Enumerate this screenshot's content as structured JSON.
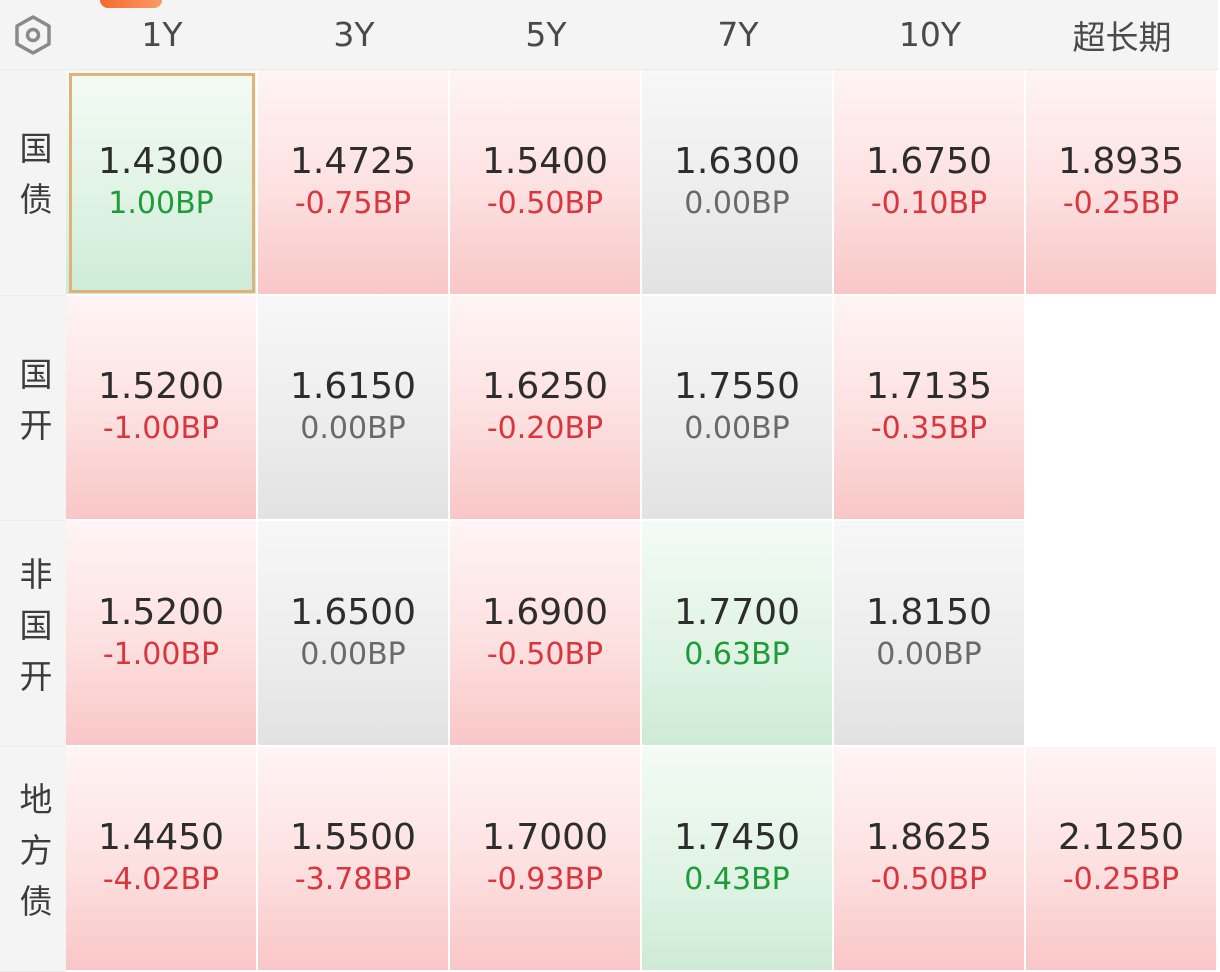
{
  "colors": {
    "negative_change": "#d9363e",
    "positive_change": "#1e9c3a",
    "zero_change": "#6a6a6a",
    "accent": "#f46a2e"
  },
  "corner_icon": "hexagon-settings-icon",
  "columns": [
    "1Y",
    "3Y",
    "5Y",
    "7Y",
    "10Y",
    "超长期"
  ],
  "rows": [
    {
      "label": "国债",
      "cells": [
        {
          "yield": "1.4300",
          "change": "1.00BP",
          "trend": "down",
          "selected": true
        },
        {
          "yield": "1.4725",
          "change": "-0.75BP",
          "trend": "up"
        },
        {
          "yield": "1.5400",
          "change": "-0.50BP",
          "trend": "up"
        },
        {
          "yield": "1.6300",
          "change": "0.00BP",
          "trend": "flat"
        },
        {
          "yield": "1.6750",
          "change": "-0.10BP",
          "trend": "up"
        },
        {
          "yield": "1.8935",
          "change": "-0.25BP",
          "trend": "up"
        }
      ]
    },
    {
      "label": "国开",
      "cells": [
        {
          "yield": "1.5200",
          "change": "-1.00BP",
          "trend": "up"
        },
        {
          "yield": "1.6150",
          "change": "0.00BP",
          "trend": "flat"
        },
        {
          "yield": "1.6250",
          "change": "-0.20BP",
          "trend": "up"
        },
        {
          "yield": "1.7550",
          "change": "0.00BP",
          "trend": "flat"
        },
        {
          "yield": "1.7135",
          "change": "-0.35BP",
          "trend": "up"
        },
        {
          "yield": "",
          "change": "",
          "trend": "empty"
        }
      ]
    },
    {
      "label": "非国开",
      "cells": [
        {
          "yield": "1.5200",
          "change": "-1.00BP",
          "trend": "up"
        },
        {
          "yield": "1.6500",
          "change": "0.00BP",
          "trend": "flat"
        },
        {
          "yield": "1.6900",
          "change": "-0.50BP",
          "trend": "up"
        },
        {
          "yield": "1.7700",
          "change": "0.63BP",
          "trend": "down"
        },
        {
          "yield": "1.8150",
          "change": "0.00BP",
          "trend": "flat"
        },
        {
          "yield": "",
          "change": "",
          "trend": "empty"
        }
      ]
    },
    {
      "label": "地方债",
      "cells": [
        {
          "yield": "1.4450",
          "change": "-4.02BP",
          "trend": "up"
        },
        {
          "yield": "1.5500",
          "change": "-3.78BP",
          "trend": "up"
        },
        {
          "yield": "1.7000",
          "change": "-0.93BP",
          "trend": "up"
        },
        {
          "yield": "1.7450",
          "change": "0.43BP",
          "trend": "down"
        },
        {
          "yield": "1.8625",
          "change": "-0.50BP",
          "trend": "up"
        },
        {
          "yield": "2.1250",
          "change": "-0.25BP",
          "trend": "up"
        }
      ]
    }
  ]
}
